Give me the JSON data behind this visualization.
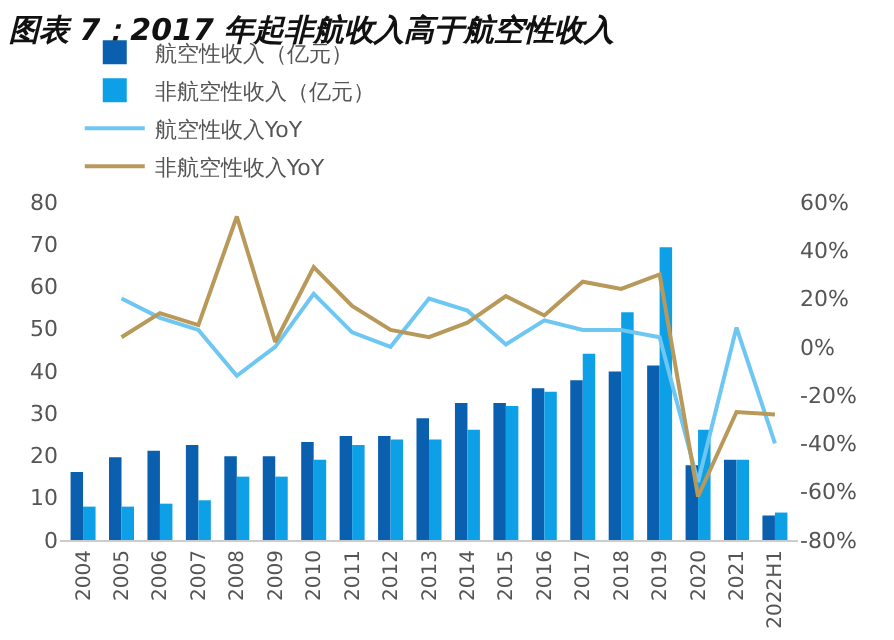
{
  "chart_data": {
    "type": "bar",
    "title": "图表 7：2017 年起非航收入高于航空性收入",
    "categories": [
      "2004",
      "2005",
      "2006",
      "2007",
      "2008",
      "2009",
      "2010",
      "2011",
      "2012",
      "2013",
      "2014",
      "2015",
      "2016",
      "2017",
      "2018",
      "2019",
      "2020",
      "2021",
      "2022H1"
    ],
    "series": [
      {
        "name": "航空性收入（亿元）",
        "color": "#0a5fae",
        "values": [
          16.1,
          19.6,
          21.1,
          22.5,
          19.8,
          19.8,
          23.2,
          24.6,
          24.6,
          28.8,
          32.4,
          32.4,
          35.9,
          37.8,
          39.9,
          41.3,
          17.7,
          19.0,
          5.8
        ]
      },
      {
        "name": "非航空性收入（亿元）",
        "color": "#0ea0e6",
        "values": [
          7.9,
          7.9,
          8.6,
          9.4,
          15,
          15,
          19,
          22.5,
          23.8,
          23.8,
          26.1,
          31.7,
          35.1,
          44.1,
          53.9,
          69.3,
          26.1,
          19.0,
          6.5
        ]
      },
      {
        "name": "航空性收入YoY",
        "type": "line",
        "axis": "y2",
        "color": "#6ec6f2",
        "values": [
          null,
          20,
          12,
          7,
          -12,
          0,
          22,
          6,
          0,
          20,
          15,
          1,
          11,
          7,
          7,
          4,
          -56,
          8,
          -40
        ]
      },
      {
        "name": "非航空性收入YoY",
        "type": "line",
        "axis": "y2",
        "color": "#b8995a",
        "values": [
          null,
          4,
          14,
          9,
          54,
          2,
          33,
          17,
          7,
          4,
          10,
          21,
          13,
          27,
          24,
          30,
          -62,
          -27,
          -28
        ]
      }
    ],
    "ylim": [
      0,
      80
    ],
    "yticks": [
      0,
      10,
      20,
      30,
      40,
      50,
      60,
      70,
      80
    ],
    "y2lim": [
      -80,
      60
    ],
    "y2ticks": [
      {
        "value": -80,
        "label": "-80%"
      },
      {
        "value": -60,
        "label": "-60%"
      },
      {
        "value": -40,
        "label": "-40%"
      },
      {
        "value": -20,
        "label": "-20%"
      },
      {
        "value": 0,
        "label": "0%"
      },
      {
        "value": 20,
        "label": "20%"
      },
      {
        "value": 40,
        "label": "40%"
      },
      {
        "value": 60,
        "label": "60%"
      }
    ],
    "grid": false,
    "legend": "top",
    "marker": "none",
    "line_style": "solid"
  }
}
